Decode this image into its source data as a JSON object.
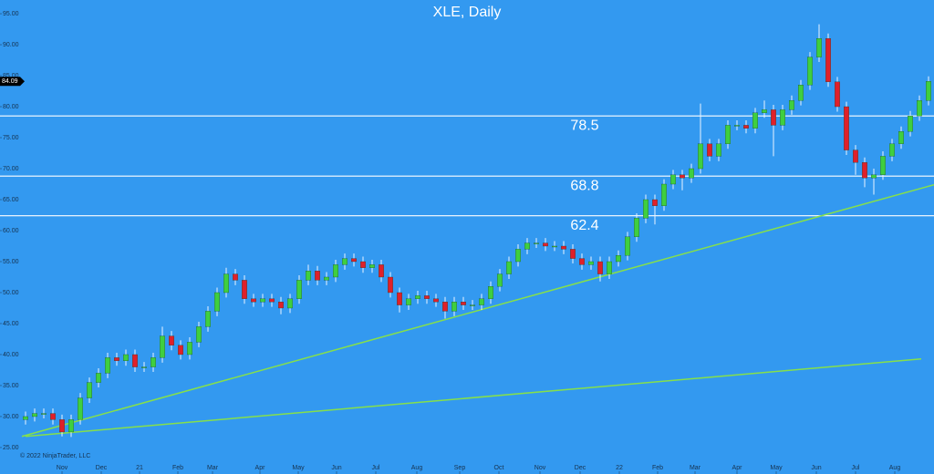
{
  "chart_data": {
    "type": "candlestick",
    "title": "XLE, Daily",
    "copyright": "© 2022 NinjaTrader, LLC",
    "background": "#3399f0",
    "up_color": "#3fcf3f",
    "down_color": "#e0202a",
    "xlim": [
      -2.8,
      99.6
    ],
    "ylim": [
      20.73,
      97.21
    ],
    "yticks": [
      {
        "value": 25,
        "label": "25.00"
      },
      {
        "value": 30,
        "label": "30.00"
      },
      {
        "value": 35,
        "label": "35.00"
      },
      {
        "value": 40,
        "label": "40.00"
      },
      {
        "value": 45,
        "label": "45.00"
      },
      {
        "value": 50,
        "label": "50.00"
      },
      {
        "value": 55,
        "label": "55.00"
      },
      {
        "value": 60,
        "label": "60.00"
      },
      {
        "value": 65,
        "label": "65.00"
      },
      {
        "value": 70,
        "label": "70.00"
      },
      {
        "value": 75,
        "label": "75.00"
      },
      {
        "value": 80,
        "label": "80.00"
      },
      {
        "value": 85,
        "label": "85.00"
      },
      {
        "value": 90,
        "label": "90.00"
      },
      {
        "value": 95,
        "label": "95.00"
      }
    ],
    "xticks": [
      {
        "value": 4,
        "label": "Nov"
      },
      {
        "value": 8.3,
        "label": "Dec"
      },
      {
        "value": 12.5,
        "label": "21"
      },
      {
        "value": 16.7,
        "label": "Feb"
      },
      {
        "value": 20.5,
        "label": "Mar"
      },
      {
        "value": 25.7,
        "label": "Apr"
      },
      {
        "value": 29.9,
        "label": "May"
      },
      {
        "value": 34.1,
        "label": "Jun"
      },
      {
        "value": 38.4,
        "label": "Jul"
      },
      {
        "value": 42.9,
        "label": "Aug"
      },
      {
        "value": 47.6,
        "label": "Sep"
      },
      {
        "value": 51.9,
        "label": "Oct"
      },
      {
        "value": 56.4,
        "label": "Nov"
      },
      {
        "value": 60.8,
        "label": "Dec"
      },
      {
        "value": 65.1,
        "label": "22"
      },
      {
        "value": 69.3,
        "label": "Feb"
      },
      {
        "value": 73.4,
        "label": "Mar"
      },
      {
        "value": 78,
        "label": "Apr"
      },
      {
        "value": 82.3,
        "label": "May"
      },
      {
        "value": 86.7,
        "label": "Jun"
      },
      {
        "value": 91,
        "label": "Jul"
      },
      {
        "value": 95.3,
        "label": "Aug"
      }
    ],
    "last_price": 84.09,
    "levels": [
      78.5,
      68.8,
      62.4
    ],
    "level_color": "#ffffff",
    "trend_color": "#86e04a",
    "trend_lines": [
      {
        "x": [
          -0.4,
          99.6
        ],
        "y": [
          26.8,
          67.4
        ]
      },
      {
        "x": [
          0,
          98.2
        ],
        "y": [
          26.8,
          39.3
        ]
      }
    ],
    "x": [
      0,
      1,
      2,
      3,
      4,
      5,
      6,
      7,
      8,
      9,
      10,
      11,
      12,
      13,
      14,
      15,
      16,
      17,
      18,
      19,
      20,
      21,
      22,
      23,
      24,
      25,
      26,
      27,
      28,
      29,
      30,
      31,
      32,
      33,
      34,
      35,
      36,
      37,
      38,
      39,
      40,
      41,
      42,
      43,
      44,
      45,
      46,
      47,
      48,
      49,
      50,
      51,
      52,
      53,
      54,
      55,
      56,
      57,
      58,
      59,
      60,
      61,
      62,
      63,
      64,
      65,
      66,
      67,
      68,
      69,
      70,
      71,
      72,
      73,
      74,
      75,
      76,
      77,
      78,
      79,
      80,
      81,
      82,
      83,
      84,
      85,
      86,
      87,
      88,
      89,
      90,
      91,
      92,
      93,
      94,
      95,
      96,
      97,
      98,
      99
    ],
    "open": [
      29.5,
      30,
      30.5,
      30.5,
      29.5,
      27.5,
      29.5,
      33,
      35.5,
      37,
      39.5,
      39,
      40,
      38,
      38,
      39.5,
      43,
      41.5,
      40,
      42,
      44.5,
      47,
      50,
      53,
      52,
      49,
      48.5,
      49,
      48.5,
      47.5,
      49,
      52,
      53.5,
      52,
      52.5,
      54.5,
      55.5,
      55,
      54,
      54.5,
      52.5,
      50,
      48,
      49,
      49.5,
      49,
      48.5,
      47,
      48.5,
      48,
      48,
      49,
      51,
      53,
      55,
      57,
      58,
      58,
      57.5,
      57.5,
      57,
      55.5,
      54.5,
      55,
      53,
      55,
      56,
      59,
      62,
      65,
      64,
      67.5,
      69,
      68.5,
      70,
      74,
      72,
      74,
      77,
      77,
      76.5,
      79,
      79.5,
      77,
      79.5,
      81,
      83.5,
      88,
      91,
      84,
      80,
      73,
      71,
      68.5,
      69,
      72,
      74,
      76,
      78.5,
      81
    ],
    "high": [
      30.8,
      31.3,
      31.3,
      31.3,
      30.3,
      30.3,
      33.8,
      36.3,
      37.8,
      40.3,
      40.3,
      40.8,
      40.8,
      38.8,
      40.3,
      44.5,
      43.8,
      42.3,
      42.8,
      45.3,
      47.8,
      50.8,
      54,
      53.8,
      52.8,
      49.8,
      49.8,
      49.8,
      49.3,
      49.8,
      52.8,
      54.5,
      54.3,
      53.3,
      55.3,
      56.3,
      56.3,
      55.8,
      55.3,
      55.3,
      53.3,
      50.8,
      49.8,
      50.3,
      50.3,
      49.8,
      49.3,
      49.3,
      49.3,
      48.8,
      49.8,
      51.8,
      53.8,
      55.8,
      57.8,
      58.8,
      58.8,
      58.8,
      58.3,
      58.3,
      57.8,
      56.3,
      55.8,
      55.8,
      55.8,
      56.8,
      59.8,
      62.8,
      65.8,
      65.8,
      68.3,
      69.8,
      69.8,
      70.8,
      80.5,
      74.8,
      74.8,
      77.8,
      77.8,
      77.8,
      79.8,
      81,
      80.3,
      80.3,
      81.8,
      84.3,
      88.8,
      93.3,
      91.8,
      84.8,
      80.8,
      73.8,
      71.8,
      70,
      72.8,
      74.8,
      76.8,
      79.3,
      81.8,
      84.9
    ],
    "low": [
      28.7,
      29.2,
      29.7,
      28.7,
      26.8,
      26.7,
      28.7,
      32.2,
      34.7,
      36.2,
      38.2,
      38.2,
      37.2,
      37.2,
      37.2,
      38.7,
      40.7,
      39.2,
      39.2,
      41.2,
      43.7,
      46.2,
      49.2,
      51.2,
      48.2,
      47.7,
      47.7,
      47.7,
      46.5,
      46.7,
      48.2,
      51.2,
      51.2,
      51.2,
      51.7,
      53.7,
      54.2,
      53.2,
      53.2,
      51.7,
      49.2,
      46.8,
      47.2,
      48.2,
      48.2,
      47.7,
      45.8,
      46.2,
      47.2,
      47.2,
      47.2,
      48.2,
      50.2,
      52.2,
      54.2,
      56.2,
      57.2,
      56.7,
      56.7,
      56.2,
      54.7,
      53.7,
      53.7,
      51.8,
      52.2,
      54.2,
      55.2,
      58.2,
      61.2,
      61,
      63.2,
      66.7,
      66.5,
      67.7,
      69.2,
      71.2,
      71.2,
      73.2,
      76.2,
      75.7,
      75.7,
      78.2,
      72,
      76.2,
      78.7,
      80.2,
      82.7,
      87.2,
      83.2,
      79.2,
      72.2,
      69,
      67,
      65.8,
      68.2,
      71.2,
      73.2,
      75.2,
      77.7,
      80.2
    ],
    "close": [
      30,
      30.5,
      30.5,
      29.5,
      27.5,
      29.5,
      33,
      35.5,
      37,
      39.5,
      39,
      40,
      38,
      38,
      39.5,
      43,
      41.5,
      40,
      42,
      44.5,
      47,
      50,
      53,
      52,
      49,
      48.5,
      49,
      48.5,
      47.5,
      49,
      52,
      53.5,
      52,
      52.5,
      54.5,
      55.5,
      55,
      54,
      54.5,
      52.5,
      50,
      48,
      49,
      49.5,
      49,
      48.5,
      47,
      48.5,
      48,
      48,
      49,
      51,
      53,
      55,
      57,
      58,
      58,
      57.5,
      57.5,
      57,
      55.5,
      54.5,
      55,
      53,
      55,
      56,
      59,
      62,
      65,
      64,
      67.5,
      69,
      68.5,
      70,
      74,
      72,
      74,
      77,
      77,
      76.5,
      79,
      79.5,
      77,
      79.5,
      81,
      83.5,
      88,
      91,
      84,
      80,
      73,
      71,
      68.5,
      69,
      72,
      74,
      76,
      78.5,
      81,
      84.09
    ]
  }
}
